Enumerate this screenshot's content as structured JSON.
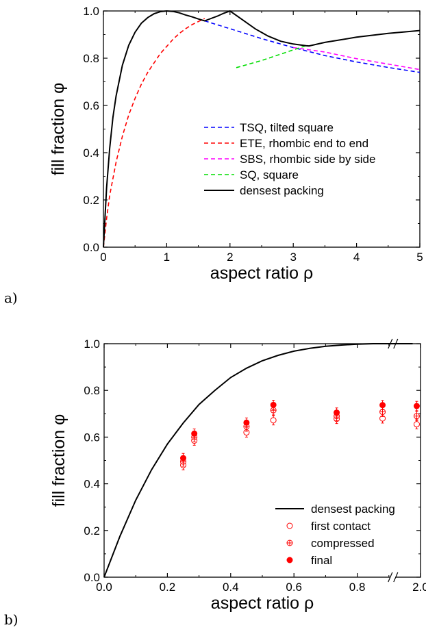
{
  "panels": [
    {
      "label": "a)"
    },
    {
      "label": "b)"
    }
  ],
  "chart_data": [
    {
      "type": "line",
      "xlabel": "aspect ratio ρ",
      "ylabel": "fill fraction φ",
      "xlim": [
        0,
        5
      ],
      "ylim": [
        0,
        1.0
      ],
      "xticks": [
        "0",
        "1",
        "2",
        "3",
        "4",
        "5"
      ],
      "yticks": [
        "0.0",
        "0.2",
        "0.4",
        "0.6",
        "0.8",
        "1.0"
      ],
      "legend_position": "center-right",
      "series": [
        {
          "name": "TSQ, tilted square",
          "color": "#0000ff",
          "style": "dashed",
          "x": [
            1.6,
            2.0,
            2.5,
            3.0,
            3.5,
            4.0,
            4.5,
            5.0
          ],
          "y": [
            0.958,
            0.925,
            0.883,
            0.845,
            0.811,
            0.784,
            0.761,
            0.74
          ]
        },
        {
          "name": "ETE, rhombic end to end",
          "color": "#ff0000",
          "style": "dashed",
          "x": [
            0.0,
            0.05,
            0.1,
            0.2,
            0.3,
            0.4,
            0.5,
            0.6,
            0.7,
            0.8,
            0.9,
            1.0,
            1.1,
            1.2,
            1.3,
            1.4,
            1.5,
            1.6
          ],
          "y": [
            0.0,
            0.12,
            0.22,
            0.36,
            0.47,
            0.56,
            0.63,
            0.69,
            0.74,
            0.78,
            0.82,
            0.85,
            0.88,
            0.905,
            0.925,
            0.942,
            0.955,
            0.968
          ]
        },
        {
          "name": "SBS, rhombic side by side",
          "color": "#ff00ff",
          "style": "dashed",
          "x": [
            3.0,
            3.5,
            4.0,
            4.5,
            5.0
          ],
          "y": [
            0.845,
            0.826,
            0.798,
            0.775,
            0.752
          ]
        },
        {
          "name": "SQ, square",
          "color": "#00dd00",
          "style": "dashed",
          "x": [
            2.1,
            2.5,
            3.0,
            3.2
          ],
          "y": [
            0.76,
            0.79,
            0.835,
            0.853
          ]
        },
        {
          "name": "densest packing",
          "color": "#000000",
          "style": "solid",
          "x": [
            0.0,
            0.05,
            0.1,
            0.15,
            0.2,
            0.3,
            0.4,
            0.5,
            0.6,
            0.7,
            0.8,
            0.9,
            1.0,
            1.1,
            1.2,
            1.3,
            1.4,
            1.5,
            1.6,
            1.7,
            1.8,
            1.9,
            2.0,
            2.2,
            2.4,
            2.6,
            2.8,
            3.0,
            3.2,
            3.25,
            3.5,
            4.0,
            4.5,
            5.0
          ],
          "y": [
            0.0,
            0.25,
            0.42,
            0.55,
            0.64,
            0.77,
            0.855,
            0.91,
            0.948,
            0.972,
            0.988,
            0.997,
            1.0,
            0.998,
            0.992,
            0.983,
            0.975,
            0.966,
            0.958,
            0.968,
            0.978,
            0.99,
            1.0,
            0.962,
            0.924,
            0.894,
            0.872,
            0.86,
            0.853,
            0.852,
            0.867,
            0.889,
            0.905,
            0.917
          ]
        }
      ]
    },
    {
      "type": "scatter",
      "xlabel": "aspect ratio ρ",
      "ylabel": "fill fraction φ",
      "xlim": [
        0,
        1.0
      ],
      "ylim": [
        0,
        1.0
      ],
      "xticks": [
        "0.0",
        "0.2",
        "0.4",
        "0.6",
        "0.8",
        "2.0"
      ],
      "yticks": [
        "0.0",
        "0.2",
        "0.4",
        "0.6",
        "0.8",
        "1.0"
      ],
      "axis_break": "between 0.8 and 2.0",
      "legend_position": "bottom-right",
      "series": [
        {
          "name": "densest packing",
          "marker": "line",
          "color": "#000000",
          "x": [
            0.0,
            0.05,
            0.1,
            0.15,
            0.2,
            0.25,
            0.3,
            0.35,
            0.4,
            0.45,
            0.5,
            0.55,
            0.6,
            0.65,
            0.7,
            0.75,
            0.8,
            0.85,
            0.9,
            0.95,
            0.975
          ],
          "y": [
            0.0,
            0.175,
            0.33,
            0.46,
            0.57,
            0.66,
            0.74,
            0.8,
            0.855,
            0.895,
            0.927,
            0.95,
            0.968,
            0.98,
            0.989,
            0.994,
            0.998,
            1.0,
            1.0,
            1.0,
            1.0
          ]
        },
        {
          "name": "first contact",
          "marker": "open-circle",
          "color": "#ff0000",
          "x": [
            0.25,
            0.285,
            0.45,
            0.535,
            0.735,
            0.88,
            0.988
          ],
          "y": [
            0.48,
            0.585,
            0.62,
            0.672,
            0.678,
            0.68,
            0.655
          ],
          "err": [
            0.02,
            0.02,
            0.02,
            0.02,
            0.02,
            0.02,
            0.02
          ]
        },
        {
          "name": "compressed",
          "marker": "crossed-circle",
          "color": "#ff0000",
          "x": [
            0.25,
            0.285,
            0.45,
            0.535,
            0.735,
            0.88,
            0.988
          ],
          "y": [
            0.495,
            0.6,
            0.645,
            0.715,
            0.69,
            0.708,
            0.69
          ],
          "err": [
            0.02,
            0.02,
            0.02,
            0.02,
            0.02,
            0.02,
            0.02
          ]
        },
        {
          "name": "final",
          "marker": "filled-circle",
          "color": "#ff0000",
          "x": [
            0.25,
            0.285,
            0.45,
            0.535,
            0.735,
            0.88,
            0.988
          ],
          "y": [
            0.51,
            0.615,
            0.662,
            0.738,
            0.705,
            0.737,
            0.733
          ],
          "err": [
            0.02,
            0.02,
            0.02,
            0.02,
            0.02,
            0.02,
            0.02
          ]
        }
      ]
    }
  ]
}
